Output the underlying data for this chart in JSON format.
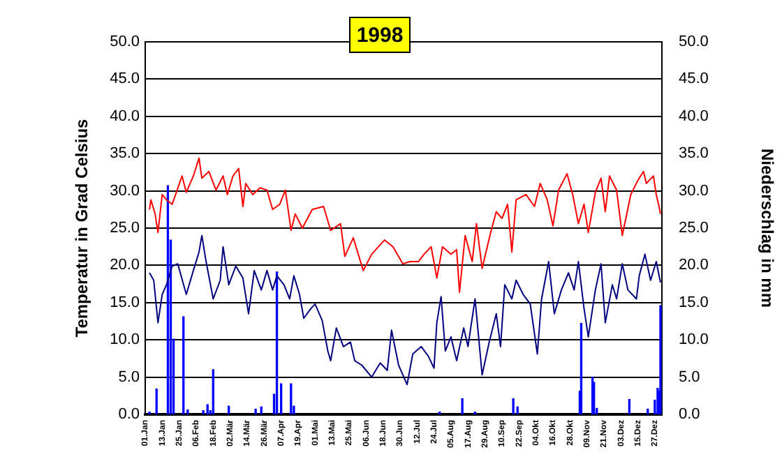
{
  "chart_data": {
    "type": "line",
    "title": "1998",
    "ylabel": "Temperatur in Grad Celsius",
    "y2label": "Niederschlag in mm",
    "xlim": [
      "1998-01-01",
      "1999-01-01"
    ],
    "xticks": [
      {
        "value": "1998-01-01",
        "label": "01.Jan"
      },
      {
        "value": "1998-01-13",
        "label": "13.Jan"
      },
      {
        "value": "1998-01-25",
        "label": "25.Jan"
      },
      {
        "value": "1998-02-06",
        "label": "06.Feb"
      },
      {
        "value": "1998-02-18",
        "label": "18.Feb"
      },
      {
        "value": "1998-03-02",
        "label": "02.Mär"
      },
      {
        "value": "1998-03-14",
        "label": "14.Mär"
      },
      {
        "value": "1998-03-26",
        "label": "26.Mär"
      },
      {
        "value": "1998-04-07",
        "label": "07.Apr"
      },
      {
        "value": "1998-04-19",
        "label": "19.Apr"
      },
      {
        "value": "1998-05-01",
        "label": "01.Mai"
      },
      {
        "value": "1998-05-13",
        "label": "13.Mai"
      },
      {
        "value": "1998-05-25",
        "label": "25.Mai"
      },
      {
        "value": "1998-06-06",
        "label": "06.Jun"
      },
      {
        "value": "1998-06-18",
        "label": "18.Jun"
      },
      {
        "value": "1998-06-30",
        "label": "30.Jun"
      },
      {
        "value": "1998-07-12",
        "label": "12.Jul"
      },
      {
        "value": "1998-07-24",
        "label": "24.Jul"
      },
      {
        "value": "1998-08-05",
        "label": "05.Aug"
      },
      {
        "value": "1998-08-17",
        "label": "17.Aug"
      },
      {
        "value": "1998-08-29",
        "label": "29.Aug"
      },
      {
        "value": "1998-09-10",
        "label": "10.Sep"
      },
      {
        "value": "1998-09-22",
        "label": "22.Sep"
      },
      {
        "value": "1998-10-04",
        "label": "04.Okt"
      },
      {
        "value": "1998-10-16",
        "label": "16.Okt"
      },
      {
        "value": "1998-10-28",
        "label": "28.Okt"
      },
      {
        "value": "1998-11-09",
        "label": "09.Nov"
      },
      {
        "value": "1998-11-21",
        "label": "21.Nov"
      },
      {
        "value": "1998-12-03",
        "label": "03.Dez"
      },
      {
        "value": "1998-12-15",
        "label": "15.Dez"
      },
      {
        "value": "1998-12-27",
        "label": "27.Dez"
      }
    ],
    "ylim": [
      0,
      50
    ],
    "yticks": [
      {
        "value": 0,
        "label": "0.0"
      },
      {
        "value": 5,
        "label": "5.0"
      },
      {
        "value": 10,
        "label": "10.0"
      },
      {
        "value": 15,
        "label": "15.0"
      },
      {
        "value": 20,
        "label": "20.0"
      },
      {
        "value": 25,
        "label": "25.0"
      },
      {
        "value": 30,
        "label": "30.0"
      },
      {
        "value": 35,
        "label": "35.0"
      },
      {
        "value": 40,
        "label": "40.0"
      },
      {
        "value": 45,
        "label": "45.0"
      },
      {
        "value": 50,
        "label": "50.0"
      }
    ],
    "y2lim": [
      0,
      50
    ],
    "y2ticks": [
      {
        "value": 0,
        "label": "0.0"
      },
      {
        "value": 5,
        "label": "5.0"
      },
      {
        "value": 10,
        "label": "10.0"
      },
      {
        "value": 15,
        "label": "15.0"
      },
      {
        "value": 20,
        "label": "20.0"
      },
      {
        "value": 25,
        "label": "25.0"
      },
      {
        "value": 30,
        "label": "30.0"
      },
      {
        "value": 35,
        "label": "35.0"
      },
      {
        "value": 40,
        "label": "40.0"
      },
      {
        "value": 45,
        "label": "45.0"
      },
      {
        "value": 50,
        "label": "50.0"
      }
    ],
    "grid": "y",
    "legend": false,
    "marker": "none",
    "line_style": "solid",
    "series": [
      {
        "color": "#ff0000",
        "x": [
          "1998-01-04",
          "1998-01-05",
          "1998-01-08",
          "1998-01-10",
          "1998-01-13",
          "1998-01-16",
          "1998-01-20",
          "1998-01-23",
          "1998-01-27",
          "1998-01-30",
          "1998-02-04",
          "1998-02-08",
          "1998-02-10",
          "1998-02-15",
          "1998-02-20",
          "1998-02-25",
          "1998-02-28",
          "1998-03-04",
          "1998-03-08",
          "1998-03-11",
          "1998-03-13",
          "1998-03-18",
          "1998-03-23",
          "1998-03-28",
          "1998-04-01",
          "1998-04-06",
          "1998-04-10",
          "1998-04-14",
          "1998-04-17",
          "1998-04-22",
          "1998-04-29",
          "1998-05-07",
          "1998-05-12",
          "1998-05-19",
          "1998-05-22",
          "1998-05-28",
          "1998-06-04",
          "1998-06-10",
          "1998-06-19",
          "1998-06-25",
          "1998-07-02",
          "1998-07-07",
          "1998-07-13",
          "1998-07-17",
          "1998-07-22",
          "1998-07-26",
          "1998-07-30",
          "1998-08-05",
          "1998-08-09",
          "1998-08-11",
          "1998-08-15",
          "1998-08-20",
          "1998-08-23",
          "1998-08-27",
          "1998-09-02",
          "1998-09-06",
          "1998-09-10",
          "1998-09-14",
          "1998-09-17",
          "1998-09-20",
          "1998-09-27",
          "1998-10-03",
          "1998-10-07",
          "1998-10-12",
          "1998-10-16",
          "1998-10-20",
          "1998-10-26",
          "1998-10-30",
          "1998-11-03",
          "1998-11-07",
          "1998-11-10",
          "1998-11-15",
          "1998-11-19",
          "1998-11-22",
          "1998-11-25",
          "1998-11-30",
          "1998-12-04",
          "1998-12-10",
          "1998-12-15",
          "1998-12-19",
          "1998-12-21",
          "1998-12-26",
          "1998-12-28",
          "1998-12-30",
          "1998-12-31"
        ],
        "values": [
          27.5,
          28.8,
          26.9,
          24.4,
          29.5,
          28.8,
          28.2,
          29.8,
          32.0,
          29.8,
          32.0,
          34.4,
          31.7,
          32.6,
          30.1,
          32.0,
          29.5,
          32.0,
          33.0,
          27.9,
          31.0,
          29.5,
          30.4,
          30.1,
          27.5,
          28.2,
          30.1,
          24.7,
          26.9,
          25.0,
          27.5,
          27.9,
          24.7,
          25.6,
          21.2,
          23.7,
          19.3,
          21.5,
          23.4,
          22.5,
          20.2,
          20.5,
          20.5,
          21.5,
          22.5,
          18.3,
          22.5,
          21.5,
          22.1,
          16.4,
          24.0,
          20.5,
          25.6,
          19.6,
          24.4,
          27.2,
          26.3,
          28.2,
          21.8,
          28.8,
          29.5,
          27.9,
          31.0,
          28.8,
          25.3,
          30.1,
          32.3,
          29.5,
          25.6,
          28.2,
          24.4,
          29.8,
          31.7,
          27.2,
          32.0,
          30.1,
          24.0,
          29.5,
          31.4,
          32.6,
          31.0,
          32.0,
          29.5,
          27.9,
          26.9
        ]
      },
      {
        "color": "#000080",
        "x": [
          "1998-01-04",
          "1998-01-07",
          "1998-01-10",
          "1998-01-13",
          "1998-01-16",
          "1998-01-20",
          "1998-01-24",
          "1998-01-30",
          "1998-02-04",
          "1998-02-08",
          "1998-02-10",
          "1998-02-13",
          "1998-02-18",
          "1998-02-23",
          "1998-02-25",
          "1998-03-01",
          "1998-03-06",
          "1998-03-11",
          "1998-03-15",
          "1998-03-19",
          "1998-03-24",
          "1998-03-28",
          "1998-04-01",
          "1998-04-04",
          "1998-04-09",
          "1998-04-13",
          "1998-04-16",
          "1998-04-20",
          "1998-04-23",
          "1998-04-28",
          "1998-05-01",
          "1998-05-06",
          "1998-05-10",
          "1998-05-12",
          "1998-05-16",
          "1998-05-21",
          "1998-05-26",
          "1998-05-29",
          "1998-06-03",
          "1998-06-10",
          "1998-06-16",
          "1998-06-21",
          "1998-06-24",
          "1998-06-29",
          "1998-07-05",
          "1998-07-09",
          "1998-07-15",
          "1998-07-20",
          "1998-07-24",
          "1998-07-26",
          "1998-07-29",
          "1998-08-01",
          "1998-08-05",
          "1998-08-09",
          "1998-08-14",
          "1998-08-17",
          "1998-08-22",
          "1998-08-27",
          "1998-09-01",
          "1998-09-06",
          "1998-09-09",
          "1998-09-12",
          "1998-09-17",
          "1998-09-20",
          "1998-09-25",
          "1998-09-30",
          "1998-10-05",
          "1998-10-08",
          "1998-10-13",
          "1998-10-17",
          "1998-10-22",
          "1998-10-27",
          "1998-10-31",
          "1998-11-03",
          "1998-11-07",
          "1998-11-10",
          "1998-11-15",
          "1998-11-19",
          "1998-11-22",
          "1998-11-27",
          "1998-11-30",
          "1998-12-04",
          "1998-12-08",
          "1998-12-14",
          "1998-12-16",
          "1998-12-20",
          "1998-12-24",
          "1998-12-28",
          "1998-12-31"
        ],
        "values": [
          19.0,
          18.0,
          12.3,
          16.1,
          17.4,
          19.9,
          20.2,
          16.1,
          19.3,
          21.8,
          24.0,
          20.5,
          15.5,
          18.0,
          22.5,
          17.4,
          19.9,
          18.3,
          13.5,
          19.3,
          16.7,
          19.3,
          16.7,
          18.6,
          17.4,
          15.5,
          18.6,
          16.1,
          12.9,
          14.2,
          14.8,
          12.6,
          8.5,
          7.2,
          11.6,
          9.1,
          9.7,
          7.2,
          6.6,
          5.0,
          6.9,
          5.9,
          11.3,
          6.6,
          4.0,
          8.1,
          9.1,
          7.8,
          6.2,
          12.3,
          15.8,
          8.5,
          10.4,
          7.2,
          11.6,
          9.1,
          15.5,
          5.3,
          9.7,
          13.5,
          9.1,
          17.4,
          15.5,
          18.0,
          16.1,
          14.8,
          8.1,
          15.5,
          20.5,
          13.5,
          16.7,
          19.0,
          16.7,
          20.5,
          14.2,
          10.4,
          16.7,
          20.2,
          12.3,
          17.4,
          15.5,
          20.2,
          16.7,
          15.5,
          18.6,
          21.5,
          18.0,
          20.5,
          17.7
        ]
      },
      {
        "type": "bar",
        "axis": "y2",
        "color": "#0000ff",
        "x": [
          "1998-01-04",
          "1998-01-09",
          "1998-01-17",
          "1998-01-19",
          "1998-01-21",
          "1998-01-28",
          "1998-01-31",
          "1998-02-11",
          "1998-02-14",
          "1998-02-16",
          "1998-02-18",
          "1998-03-01",
          "1998-03-20",
          "1998-03-24",
          "1998-04-02",
          "1998-04-04",
          "1998-04-07",
          "1998-04-14",
          "1998-04-16",
          "1998-07-28",
          "1998-08-13",
          "1998-08-22",
          "1998-09-18",
          "1998-09-21",
          "1998-11-04",
          "1998-11-05",
          "1998-11-13",
          "1998-11-14",
          "1998-11-16",
          "1998-12-09",
          "1998-12-22",
          "1998-12-27",
          "1998-12-29",
          "1998-12-30",
          "1998-12-31"
        ],
        "values": [
          0.3,
          3.4,
          30.7,
          23.4,
          10.1,
          13.1,
          0.6,
          0.5,
          1.3,
          0.5,
          6.0,
          1.1,
          0.7,
          1.0,
          2.7,
          19.1,
          4.1,
          4.1,
          1.1,
          0.3,
          2.1,
          0.3,
          2.1,
          1.0,
          3.1,
          12.2,
          5.0,
          4.3,
          0.8,
          2.0,
          0.7,
          1.9,
          3.5,
          3.1,
          14.6
        ]
      }
    ]
  }
}
